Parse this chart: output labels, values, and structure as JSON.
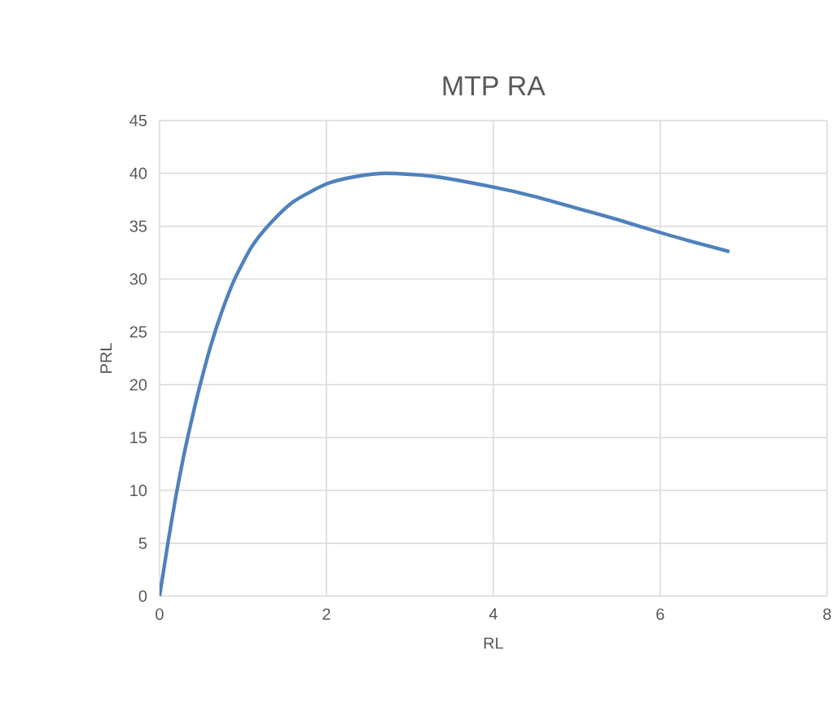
{
  "chart_data": {
    "type": "line",
    "title": "MTP RA",
    "xlabel": "RL",
    "ylabel": "PRL",
    "series": [
      {
        "color": "#4f81bd",
        "x": [
          0,
          0.1,
          0.19,
          0.29,
          0.4,
          0.48,
          0.61,
          0.75,
          0.9,
          1.1,
          1.32,
          1.6,
          2,
          2.35,
          2.72,
          3.3,
          4,
          4.5,
          5,
          5.5,
          6,
          6.4,
          6.83
        ],
        "values": [
          0,
          5,
          9.2,
          13.3,
          17.2,
          19.8,
          23.6,
          27,
          30,
          33,
          35.2,
          37.3,
          39,
          39.7,
          40,
          39.7,
          38.7,
          37.8,
          36.7,
          35.6,
          34.4,
          33.5,
          32.6
        ]
      }
    ],
    "xlim": [
      0,
      8
    ],
    "ylim": [
      0,
      45
    ],
    "xticks": [
      0,
      2,
      4,
      6,
      8
    ],
    "yticks": [
      0,
      5,
      10,
      15,
      20,
      25,
      30,
      35,
      40,
      45
    ],
    "grid": true,
    "marker": "none",
    "line_style": "solid"
  }
}
